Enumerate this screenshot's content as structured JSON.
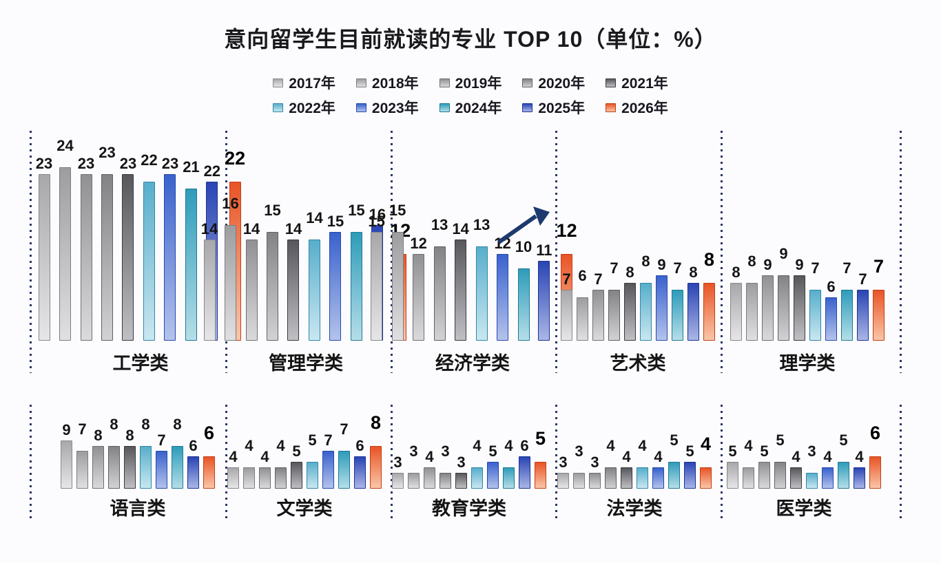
{
  "title": "意向留学生目前就读的专业 TOP 10（单位：%）",
  "legend": {
    "items": [
      "2017年",
      "2018年",
      "2019年",
      "2020年",
      "2021年",
      "2022年",
      "2023年",
      "2024年",
      "2025年",
      "2026年"
    ]
  },
  "colors": {
    "series": [
      {
        "top": "#a8a8aa",
        "bottom": "#e6e6e8",
        "border": "#87878a"
      },
      {
        "top": "#9d9da0",
        "bottom": "#e0e0e2",
        "border": "#7b7b7e"
      },
      {
        "top": "#919194",
        "bottom": "#dadadc",
        "border": "#6f6f72"
      },
      {
        "top": "#838386",
        "bottom": "#d2d2d5",
        "border": "#606064"
      },
      {
        "top": "#57575c",
        "bottom": "#bfbfc4",
        "border": "#38383e"
      },
      {
        "top": "#58aecb",
        "bottom": "#c9e7f0",
        "border": "#2f86a6"
      },
      {
        "top": "#3a62cd",
        "bottom": "#b4c3ec",
        "border": "#2548aa"
      },
      {
        "top": "#2e9cba",
        "bottom": "#b5dee8",
        "border": "#1e7892"
      },
      {
        "top": "#2a45b4",
        "bottom": "#aab6e6",
        "border": "#1b3292"
      },
      {
        "top": "#e95426",
        "bottom": "#f9c6a8",
        "border": "#c23e16"
      }
    ],
    "separator": "#2a3560",
    "arrow": "#1d3a6e",
    "title_text": "#1a1a1c"
  },
  "chart_data": {
    "type": "bar",
    "title": "意向留学生目前就读的专业 TOP 10",
    "unit": "%",
    "legend_position": "top",
    "value_axis": "hidden",
    "value_labels": "above-bars",
    "series_labels": [
      "2017年",
      "2018年",
      "2019年",
      "2020年",
      "2021年",
      "2022年",
      "2023年",
      "2024年",
      "2025年",
      "2026年"
    ],
    "groups": [
      {
        "category": "工学类",
        "values": [
          23,
          24,
          23,
          23,
          23,
          22,
          23,
          21,
          22,
          22
        ]
      },
      {
        "category": "管理学类",
        "values": [
          14,
          16,
          14,
          15,
          14,
          14,
          15,
          15,
          16,
          12
        ]
      },
      {
        "category": "经济学类",
        "values": [
          15,
          15,
          12,
          13,
          14,
          13,
          12,
          10,
          11,
          12
        ],
        "annotation": "up-trend-arrow"
      },
      {
        "category": "艺术类",
        "values": [
          7,
          6,
          7,
          7,
          8,
          8,
          9,
          7,
          8,
          8
        ]
      },
      {
        "category": "理学类",
        "values": [
          8,
          8,
          9,
          9,
          9,
          7,
          6,
          7,
          7,
          7
        ]
      },
      {
        "category": "语言类",
        "values": [
          9,
          7,
          8,
          8,
          8,
          8,
          7,
          8,
          6,
          6
        ]
      },
      {
        "category": "文学类",
        "values": [
          4,
          4,
          4,
          4,
          5,
          5,
          7,
          7,
          6,
          8
        ]
      },
      {
        "category": "教育学类",
        "values": [
          3,
          3,
          4,
          3,
          3,
          4,
          5,
          4,
          6,
          5
        ]
      },
      {
        "category": "法学类",
        "values": [
          3,
          3,
          3,
          4,
          4,
          4,
          4,
          5,
          5,
          4
        ]
      },
      {
        "category": "医学类",
        "values": [
          5,
          4,
          5,
          5,
          4,
          3,
          4,
          5,
          4,
          6
        ]
      }
    ]
  }
}
